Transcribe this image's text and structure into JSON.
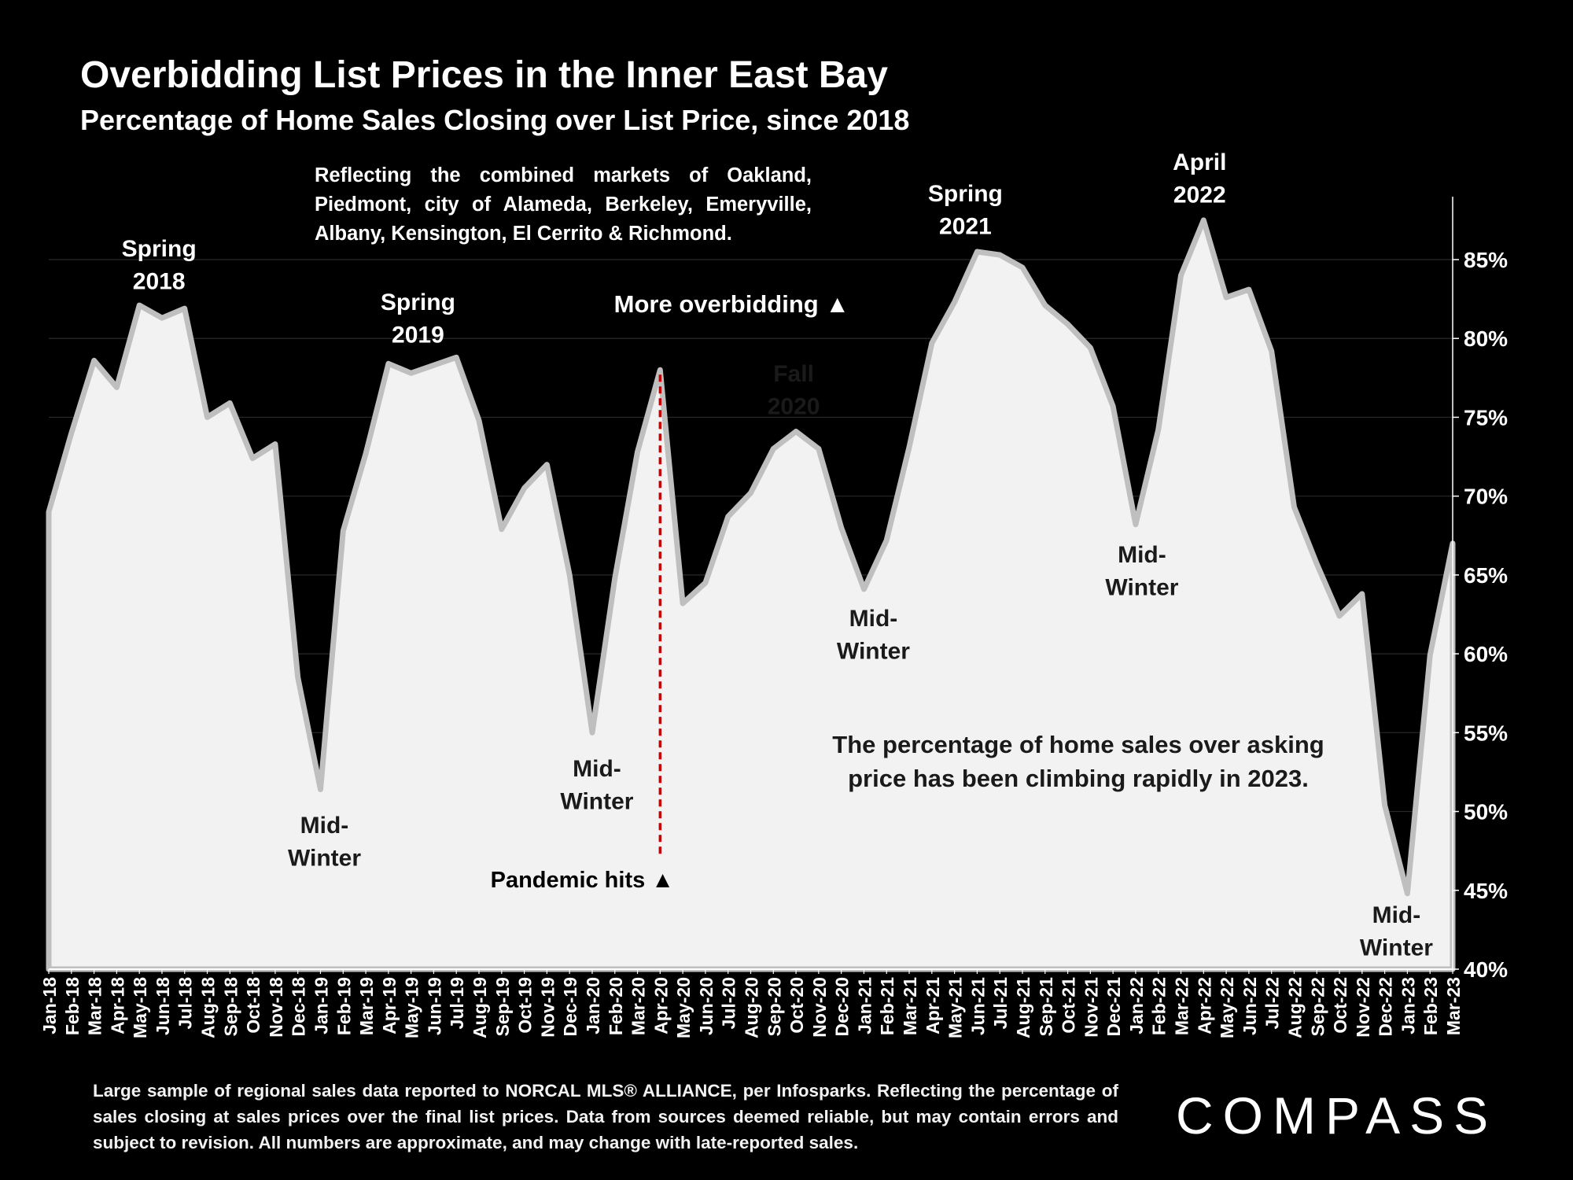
{
  "header": {
    "title": "Overbidding List Prices in the Inner East Bay",
    "subtitle": "Percentage of Home Sales Closing over List Price, since 2018",
    "scope_note": "Reflecting the combined markets of Oakland, Piedmont, city of Alameda, Berkeley, Emeryville, Albany, Kensington, El Cerrito & Richmond."
  },
  "footer": {
    "note": "Large sample of regional sales data reported to NORCAL MLS® ALLIANCE, per Infosparks. Reflecting the percentage of sales closing at sales prices over the final list prices. Data from sources deemed reliable, but may contain errors and subject to revision. All numbers are approximate, and may change with late-reported sales.",
    "logo_text": "COMPASS"
  },
  "colors": {
    "background": "#000000",
    "area_fill": "#f2f2f2",
    "area_outline": "#bfbfbf",
    "text": "#ffffff",
    "annotation_text": "#1a1a1a",
    "pandemic_line": "#c00000"
  },
  "chart_data": {
    "type": "area",
    "title": "Overbidding List Prices in the Inner East Bay",
    "subtitle": "Percentage of Home Sales Closing over List Price, since 2018",
    "ylim": [
      40,
      87.5
    ],
    "y_ticks": [
      "40%",
      "45%",
      "50%",
      "55%",
      "60%",
      "65%",
      "70%",
      "75%",
      "80%",
      "85%"
    ],
    "y_axis_side": "right",
    "grid": true,
    "x": [
      "Jan-18",
      "Feb-18",
      "Mar-18",
      "Apr-18",
      "May-18",
      "Jun-18",
      "Jul-18",
      "Aug-18",
      "Sep-18",
      "Oct-18",
      "Nov-18",
      "Dec-18",
      "Jan-19",
      "Feb-19",
      "Mar-19",
      "Apr-19",
      "May-19",
      "Jun-19",
      "Jul-19",
      "Aug-19",
      "Sep-19",
      "Oct-19",
      "Nov-19",
      "Dec-19",
      "Jan-20",
      "Feb-20",
      "Mar-20",
      "Apr-20",
      "May-20",
      "Jun-20",
      "Jul-20",
      "Aug-20",
      "Sep-20",
      "Oct-20",
      "Nov-20",
      "Dec-20",
      "Jan-21",
      "Feb-21",
      "Mar-21",
      "Apr-21",
      "May-21",
      "Jun-21",
      "Jul-21",
      "Aug-21",
      "Sep-21",
      "Oct-21",
      "Nov-21",
      "Dec-21",
      "Jan-22",
      "Feb-22",
      "Mar-22",
      "Apr-22",
      "May-22",
      "Jun-22",
      "Jul-22",
      "Aug-22",
      "Sep-22",
      "Oct-22",
      "Nov-22",
      "Dec-22",
      "Jan-23",
      "Feb-23",
      "Mar-23"
    ],
    "series": [
      {
        "values": [
          69.0,
          74.0,
          78.6,
          76.9,
          82.1,
          81.3,
          81.9,
          75.0,
          75.9,
          72.4,
          73.3,
          58.5,
          51.4,
          67.8,
          72.7,
          78.4,
          77.8,
          78.3,
          78.8,
          74.8,
          67.9,
          70.5,
          72.0,
          65.0,
          55.0,
          64.8,
          72.8,
          78.0,
          63.2,
          64.5,
          68.7,
          70.2,
          73.0,
          74.1,
          73.0,
          68.0,
          64.1,
          67.2,
          73.1,
          79.7,
          82.3,
          85.5,
          85.3,
          84.5,
          82.1,
          80.9,
          79.4,
          75.7,
          68.2,
          74.2,
          84.0,
          87.5,
          82.6,
          83.1,
          79.2,
          69.3,
          65.7,
          62.4,
          63.8,
          50.4,
          44.8,
          59.9,
          67.0
        ]
      }
    ],
    "period_labels": [
      {
        "text": [
          "Spring",
          "2018"
        ],
        "month": "May-18"
      },
      {
        "text": [
          "Spring",
          "2019"
        ],
        "month": "Jun-19"
      },
      {
        "text": [
          "Fall",
          "2020"
        ],
        "month": "Oct-20"
      },
      {
        "text": [
          "Spring",
          "2021"
        ],
        "month": "Jun-21"
      },
      {
        "text": [
          "April",
          "2022"
        ],
        "month": "Apr-22"
      },
      {
        "text": [
          "Mid-",
          "Winter"
        ],
        "month": "Jan-19"
      },
      {
        "text": [
          "Mid-",
          "Winter"
        ],
        "month": "Jan-20"
      },
      {
        "text": [
          "Mid-",
          "Winter"
        ],
        "month": "Jan-21"
      },
      {
        "text": [
          "Mid-",
          "Winter"
        ],
        "month": "Jan-22"
      },
      {
        "text": [
          "Mid-",
          "Winter"
        ],
        "month": "Jan-23"
      }
    ],
    "callouts": {
      "more_overbidding": "More overbidding ▲",
      "pandemic_hits": "Pandemic hits ▲",
      "pandemic_month": "Apr-20",
      "summary": [
        "The percentage of home sales over asking",
        "price has been climbing rapidly in 2023."
      ]
    }
  }
}
